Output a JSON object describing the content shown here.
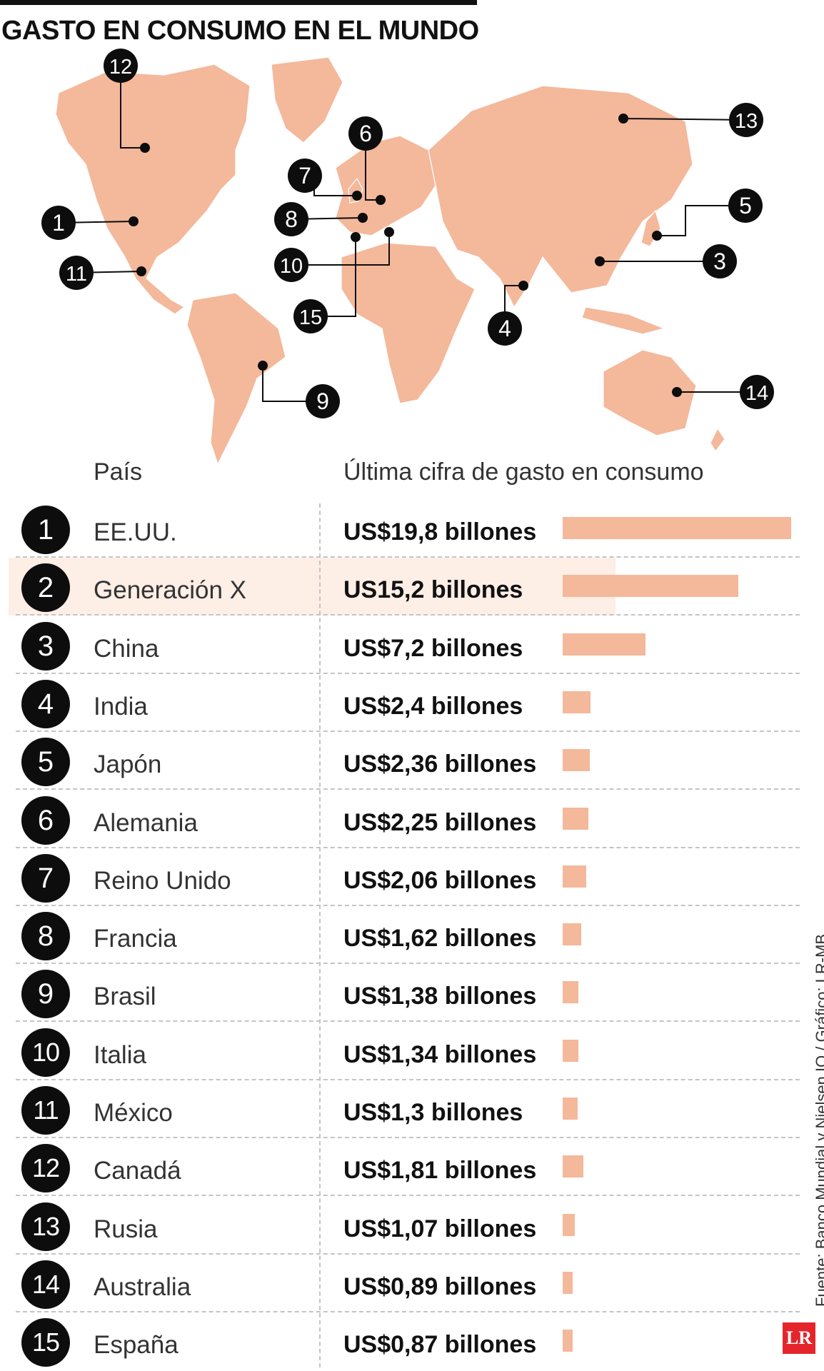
{
  "title": "GASTO EN CONSUMO EN EL MUNDO",
  "headers": {
    "country": "País",
    "value": "Última cifra de gasto en consumo"
  },
  "source": "Fuente: Banco Mundial y Nielsen IQ / Gráfico: LR-MB",
  "logo": "LR",
  "colors": {
    "land": "#f4b89b",
    "highlight": "#fdeee6",
    "marker": "#0d0d0d"
  },
  "map_labels": [
    {
      "number": "1",
      "country": "EE.UU."
    },
    {
      "number": "3",
      "country": "China"
    },
    {
      "number": "4",
      "country": "India"
    },
    {
      "number": "5",
      "country": "Japón"
    },
    {
      "number": "6",
      "country": "Alemania"
    },
    {
      "number": "7",
      "country": "Reino Unido"
    },
    {
      "number": "8",
      "country": "Francia"
    },
    {
      "number": "9",
      "country": "Brasil"
    },
    {
      "number": "10",
      "country": "Italia"
    },
    {
      "number": "11",
      "country": "México"
    },
    {
      "number": "12",
      "country": "Canadá"
    },
    {
      "number": "13",
      "country": "Rusia"
    },
    {
      "number": "14",
      "country": "Australia"
    },
    {
      "number": "15",
      "country": "España"
    }
  ],
  "chart_data": {
    "type": "bar",
    "title": "GASTO EN CONSUMO EN EL MUNDO",
    "xlabel": "Última cifra de gasto en consumo",
    "ylabel": "País",
    "unit": "billones de US$",
    "xlim": [
      0,
      19.8
    ],
    "highlight_index": 1,
    "categories": [
      "EE.UU.",
      "Generación X",
      "China",
      "India",
      "Japón",
      "Alemania",
      "Reino Unido",
      "Francia",
      "Brasil",
      "Italia",
      "México",
      "Canadá",
      "Rusia",
      "Australia",
      "España"
    ],
    "values": [
      19.8,
      15.2,
      7.2,
      2.4,
      2.36,
      2.25,
      2.06,
      1.62,
      1.38,
      1.34,
      1.3,
      1.81,
      1.07,
      0.89,
      0.87
    ],
    "value_labels": [
      "US$19,8 billones",
      "US15,2 billones",
      "US$7,2 billones",
      "US$2,4 billones",
      "US$2,36 billones",
      "US$2,25 billones",
      "US$2,06 billones",
      "US$1,62 billones",
      "US$1,38 billones",
      "US$1,34 billones",
      "US$1,3 billones",
      "US$1,81 billones",
      "US$1,07 billones",
      "US$0,89 billones",
      "US$0,87 billones"
    ]
  }
}
